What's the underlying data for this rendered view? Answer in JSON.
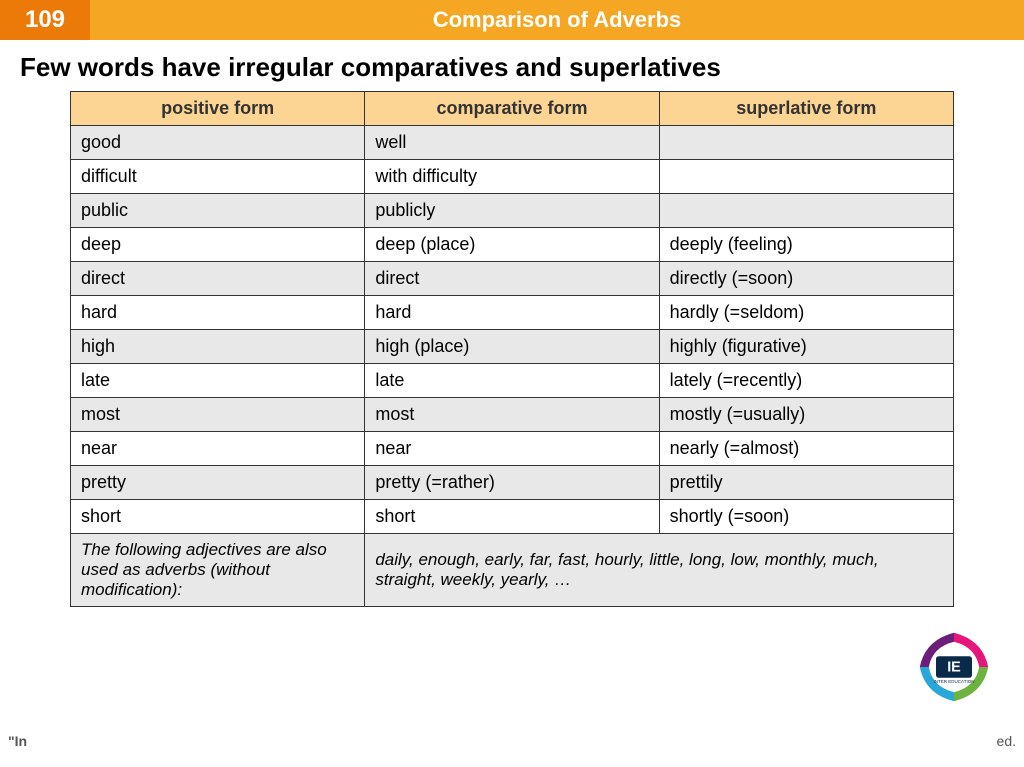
{
  "header": {
    "number": "109",
    "title": "Comparison of Adverbs",
    "number_bg": "#ec7a08",
    "title_bg": "#f5a623",
    "text_color": "#ffffff"
  },
  "subtitle": "Few words have irregular comparatives and superlatives",
  "table": {
    "header_bg": "#fcd493",
    "odd_row_bg": "#e8e8e8",
    "even_row_bg": "#ffffff",
    "border_color": "#333333",
    "columns": [
      "positive form",
      "comparative form",
      "superlative form"
    ],
    "rows": [
      [
        "good",
        "well",
        ""
      ],
      [
        "difficult",
        "with difficulty",
        ""
      ],
      [
        "public",
        "publicly",
        ""
      ],
      [
        "deep",
        "deep (place)",
        "deeply (feeling)"
      ],
      [
        "direct",
        "direct",
        "directly (=soon)"
      ],
      [
        "hard",
        "hard",
        "hardly (=seldom)"
      ],
      [
        "high",
        "high (place)",
        "highly (figurative)"
      ],
      [
        "late",
        "late",
        "lately (=recently)"
      ],
      [
        "most",
        "most",
        "mostly (=usually)"
      ],
      [
        "near",
        "near",
        "nearly (=almost)"
      ],
      [
        "pretty",
        "pretty (=rather)",
        "prettily"
      ],
      [
        "short",
        "short",
        "shortly (=soon)"
      ]
    ],
    "footer": {
      "left": "The following adjectives are also used as adverbs (without modification):",
      "right": "daily, enough, early, far, fast, hourly, little, long, low, monthly, much, straight, weekly, yearly, …"
    }
  },
  "logo": {
    "text_top": "IE",
    "text_bottom": "INTER EDUCATION",
    "colors": [
      "#6b1e7a",
      "#e6177a",
      "#2aa7d9",
      "#6db33f"
    ]
  },
  "bottom_left": "\"In",
  "bottom_right": "ed."
}
